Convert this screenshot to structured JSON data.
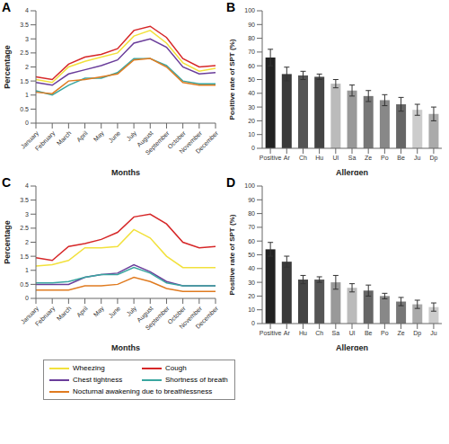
{
  "chart_data": [
    {
      "title": "A",
      "type": "line",
      "x_label": "Months",
      "y_label": "Percentage",
      "categories": [
        "January",
        "February",
        "March",
        "April",
        "May",
        "June",
        "July",
        "August",
        "September",
        "October",
        "November",
        "December"
      ],
      "series": [
        {
          "name": "Wheezing",
          "color": "#f2e13c",
          "values": [
            1.55,
            1.45,
            2.0,
            2.2,
            2.35,
            2.5,
            3.1,
            3.3,
            2.85,
            2.15,
            1.85,
            1.95
          ]
        },
        {
          "name": "Cough",
          "color": "#d62728",
          "values": [
            1.65,
            1.55,
            2.1,
            2.35,
            2.45,
            2.65,
            3.3,
            3.45,
            3.05,
            2.3,
            2.0,
            2.05
          ]
        },
        {
          "name": "Chest tightness",
          "color": "#6a3d9a",
          "values": [
            1.45,
            1.35,
            1.75,
            1.9,
            2.05,
            2.25,
            2.85,
            3.0,
            2.7,
            2.0,
            1.75,
            1.8
          ]
        },
        {
          "name": "Shortness of breath",
          "color": "#3aa6a0",
          "values": [
            1.15,
            1.0,
            1.35,
            1.6,
            1.6,
            1.8,
            2.3,
            2.3,
            2.05,
            1.5,
            1.4,
            1.4
          ]
        },
        {
          "name": "Nocturnal awakening due to breathlessness",
          "color": "#e07b20",
          "values": [
            1.1,
            1.05,
            1.5,
            1.55,
            1.65,
            1.75,
            2.25,
            2.3,
            2.0,
            1.45,
            1.35,
            1.35
          ]
        }
      ],
      "ylim": [
        0,
        4
      ],
      "yticks": [
        0,
        0.5,
        1,
        1.5,
        2,
        2.5,
        3,
        3.5,
        4
      ]
    },
    {
      "title": "B",
      "type": "bar",
      "x_label": "Allergen",
      "y_label": "Positive rate of SPT (%)",
      "categories": [
        "Positive",
        "Ar",
        "Ch",
        "Hu",
        "Ul",
        "Sa",
        "Ze",
        "Po",
        "Be",
        "Ju",
        "Dp"
      ],
      "values": [
        66,
        54,
        53,
        52,
        47,
        42,
        38,
        35,
        32,
        28,
        25
      ],
      "errors": [
        6,
        5,
        3,
        2,
        3,
        4,
        4,
        4,
        5,
        4,
        5
      ],
      "colors": [
        "#222222",
        "#3a3a3a",
        "#555555",
        "#444444",
        "#bbbbbb",
        "#999999",
        "#777777",
        "#888888",
        "#666666",
        "#cccccc",
        "#aaaaaa"
      ],
      "ylim": [
        0,
        100
      ],
      "yticks": [
        0,
        10,
        20,
        30,
        40,
        50,
        60,
        70,
        80,
        90,
        100
      ]
    },
    {
      "title": "C",
      "type": "line",
      "x_label": "Months",
      "y_label": "Percentage",
      "legend": "bottom",
      "categories": [
        "January",
        "February",
        "March",
        "April",
        "May",
        "June",
        "July",
        "August",
        "September",
        "October",
        "November",
        "December"
      ],
      "series": [
        {
          "name": "Wheezing",
          "color": "#f2e13c",
          "values": [
            1.15,
            1.2,
            1.35,
            1.8,
            1.8,
            1.85,
            2.45,
            2.15,
            1.5,
            1.1,
            1.1,
            1.1
          ]
        },
        {
          "name": "Cough",
          "color": "#d62728",
          "values": [
            1.45,
            1.35,
            1.85,
            1.95,
            2.1,
            2.35,
            2.9,
            3.0,
            2.65,
            2.0,
            1.8,
            1.85
          ]
        },
        {
          "name": "Chest tightness",
          "color": "#6a3d9a",
          "values": [
            0.5,
            0.5,
            0.5,
            0.75,
            0.85,
            0.9,
            1.2,
            0.95,
            0.6,
            0.45,
            0.45,
            0.45
          ]
        },
        {
          "name": "Shortness of breath",
          "color": "#3aa6a0",
          "values": [
            0.55,
            0.55,
            0.6,
            0.75,
            0.85,
            0.85,
            1.1,
            0.9,
            0.55,
            0.45,
            0.45,
            0.45
          ]
        },
        {
          "name": "Nocturnal awakening due to breathlessness",
          "color": "#e07b20",
          "values": [
            0.3,
            0.3,
            0.3,
            0.45,
            0.45,
            0.5,
            0.75,
            0.6,
            0.35,
            0.25,
            0.25,
            0.25
          ]
        }
      ],
      "ylim": [
        0,
        4
      ],
      "yticks": [
        0,
        0.5,
        1,
        1.5,
        2,
        2.5,
        3,
        3.5,
        4
      ]
    },
    {
      "title": "D",
      "type": "bar",
      "x_label": "Allergen",
      "y_label": "Positive rate of SPT (%)",
      "categories": [
        "Positive",
        "Ar",
        "Hu",
        "Ch",
        "Sa",
        "Ul",
        "Be",
        "Po",
        "Ze",
        "Dp",
        "Ju"
      ],
      "values": [
        54,
        45,
        32,
        32,
        30,
        26,
        24,
        20,
        16,
        14,
        12
      ],
      "errors": [
        5,
        4,
        3,
        2,
        5,
        3,
        4,
        2,
        3,
        3,
        3
      ],
      "colors": [
        "#222222",
        "#3a3a3a",
        "#444444",
        "#555555",
        "#999999",
        "#bbbbbb",
        "#666666",
        "#888888",
        "#777777",
        "#aaaaaa",
        "#cccccc"
      ],
      "ylim": [
        0,
        100
      ],
      "yticks": [
        0,
        10,
        20,
        30,
        40,
        50,
        60,
        70,
        80,
        90,
        100
      ]
    }
  ]
}
